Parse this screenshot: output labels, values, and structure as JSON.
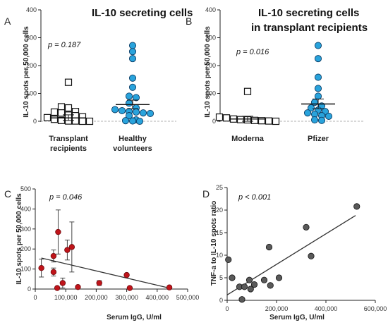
{
  "chart_data": [
    {
      "panel": "A",
      "type": "scatter",
      "title": "IL-10 secreting cells",
      "ylabel": "IL-10 spots per 50,000 cells",
      "ylim": [
        0,
        400
      ],
      "yticks": [
        0,
        100,
        200,
        300,
        400
      ],
      "p_value": "p = 0.187",
      "series": [
        {
          "name": "Transplant recipients",
          "label_lines": [
            "Transplant",
            "recipients"
          ],
          "marker": "open-square",
          "values": [
            140,
            52,
            48,
            35,
            33,
            30,
            22,
            20,
            16,
            13,
            7,
            3,
            1,
            1,
            0,
            0
          ],
          "mean": 12,
          "sem_low": 3,
          "sem_high": 23
        },
        {
          "name": "Healthy volunteers",
          "label_lines": [
            "Healthy",
            "volunteers"
          ],
          "marker": "blue-circle",
          "values": [
            272,
            250,
            225,
            155,
            122,
            90,
            85,
            65,
            48,
            42,
            38,
            35,
            33,
            30,
            28,
            20,
            5,
            2,
            1,
            0
          ],
          "mean": 60,
          "sem_low": 45,
          "sem_high": 76
        }
      ]
    },
    {
      "panel": "B",
      "type": "scatter",
      "title": "IL-10 secreting cells",
      "subtitle": "in transplant recipients",
      "ylabel": "IL-10 spots per 50,000 cells",
      "ylim": [
        0,
        400
      ],
      "yticks": [
        0,
        100,
        200,
        300,
        400
      ],
      "p_value": "p = 0.016",
      "series": [
        {
          "name": "Moderna",
          "label_lines": [
            "Moderna"
          ],
          "marker": "open-square",
          "values": [
            107,
            15,
            12,
            8,
            6,
            5,
            3,
            2,
            1,
            0
          ],
          "mean": 8,
          "sem_low": 0,
          "sem_high": 18
        },
        {
          "name": "Pfizer",
          "label_lines": [
            "Pfizer"
          ],
          "marker": "blue-circle",
          "values": [
            272,
            225,
            158,
            118,
            90,
            68,
            55,
            48,
            40,
            35,
            30,
            25,
            20,
            18,
            5,
            3
          ],
          "mean": 62,
          "sem_low": 45,
          "sem_high": 80
        }
      ]
    },
    {
      "panel": "C",
      "type": "scatter",
      "ylabel": "IL-10 spots per 50,000 cells",
      "xlabel": "Serum IgG, U/ml",
      "xlim": [
        0,
        500000
      ],
      "ylim": [
        0,
        500
      ],
      "xticks": [
        0,
        100000,
        200000,
        300000,
        400000,
        500000
      ],
      "xtick_labels": [
        "0",
        "100,000",
        "200,000",
        "300,000",
        "400,000",
        "500,000"
      ],
      "yticks": [
        0,
        100,
        200,
        300,
        400,
        500
      ],
      "p_value": "p = 0.046",
      "points": [
        {
          "x": 20000,
          "y": 105,
          "err": 45
        },
        {
          "x": 60000,
          "y": 165,
          "err": 30
        },
        {
          "x": 60000,
          "y": 85,
          "err": 20
        },
        {
          "x": 75000,
          "y": 285,
          "err": 110
        },
        {
          "x": 72000,
          "y": 5
        },
        {
          "x": 90000,
          "y": 30,
          "err": 25
        },
        {
          "x": 105000,
          "y": 195,
          "err": 50
        },
        {
          "x": 120000,
          "y": 210,
          "err": 125
        },
        {
          "x": 140000,
          "y": 10
        },
        {
          "x": 210000,
          "y": 30,
          "err": 12
        },
        {
          "x": 300000,
          "y": 70
        },
        {
          "x": 310000,
          "y": 5
        },
        {
          "x": 440000,
          "y": 8
        }
      ],
      "fit_line": {
        "x": [
          20000,
          440000
        ],
        "y": [
          155,
          5
        ]
      }
    },
    {
      "panel": "D",
      "type": "scatter",
      "ylabel": "TNF-a to IL-10 spots ratio",
      "xlabel": "Serum IgG, U/ml",
      "xlim": [
        0,
        600000
      ],
      "ylim": [
        0,
        25
      ],
      "xticks": [
        0,
        200000,
        400000,
        600000
      ],
      "xtick_labels": [
        "0",
        "200,000",
        "400,000",
        "600,000"
      ],
      "yticks": [
        0,
        5,
        10,
        15,
        20,
        25
      ],
      "p_value": "p < 0.001",
      "points": [
        {
          "x": 5000,
          "y": 9
        },
        {
          "x": 20000,
          "y": 5
        },
        {
          "x": 50000,
          "y": 3
        },
        {
          "x": 60000,
          "y": 0.2
        },
        {
          "x": 70000,
          "y": 3
        },
        {
          "x": 90000,
          "y": 4.5
        },
        {
          "x": 95000,
          "y": 2.5
        },
        {
          "x": 110000,
          "y": 3.5
        },
        {
          "x": 150000,
          "y": 4.5
        },
        {
          "x": 170000,
          "y": 11.8
        },
        {
          "x": 175000,
          "y": 3.3
        },
        {
          "x": 210000,
          "y": 5
        },
        {
          "x": 320000,
          "y": 16.2
        },
        {
          "x": 340000,
          "y": 9.8
        },
        {
          "x": 525000,
          "y": 20.8
        }
      ],
      "fit_line": {
        "x": [
          0,
          520000
        ],
        "y": [
          1.2,
          18.8
        ]
      }
    }
  ],
  "colors": {
    "blue_marker": "#29a3dc",
    "red_marker": "#c0141a",
    "gray_marker": "#5a5a5a",
    "axis": "#222222",
    "zero_line": "#b0b0b0"
  }
}
